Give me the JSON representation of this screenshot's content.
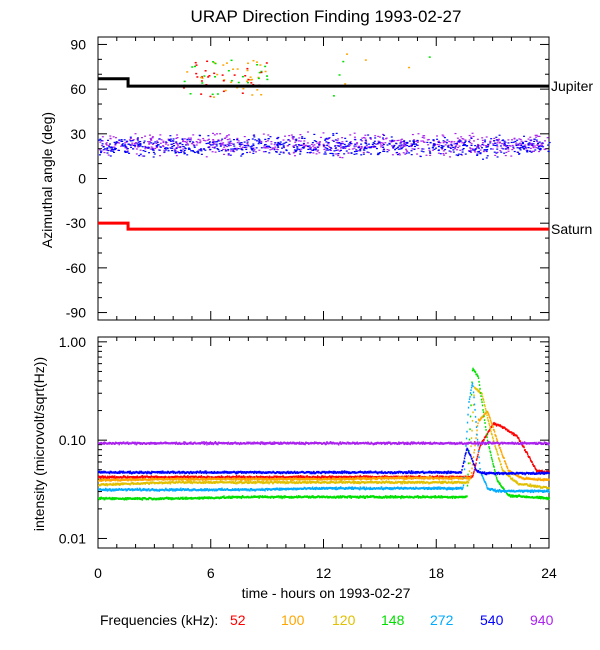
{
  "title": "URAP Direction Finding  1993-02-27",
  "freq_label": "Frequencies (kHz):",
  "colors": {
    "jupiter": "#000000",
    "saturn": "#ff0000",
    "f52": "#ff0000",
    "f100": "#ffa500",
    "f120": "#e0c000",
    "f148": "#00e000",
    "f272": "#00aaff",
    "f540": "#0000ff",
    "f940": "#aa22ee"
  },
  "chart_data": [
    {
      "type": "scatter",
      "ylabel": "Azimuthal angle (deg)",
      "xlim": [
        0,
        24
      ],
      "ylim": [
        -95,
        95
      ],
      "yticks": [
        "90",
        "60",
        "30",
        "0",
        "-30",
        "-60",
        "-90"
      ],
      "ytick_values": [
        90,
        60,
        30,
        0,
        -30,
        -60,
        -90
      ],
      "lines": [
        {
          "name": "Jupiter",
          "x": [
            0,
            1.6,
            1.6,
            24
          ],
          "y": [
            67,
            67,
            62,
            62
          ],
          "color_key": "jupiter"
        },
        {
          "name": "Saturn",
          "x": [
            0,
            1.6,
            1.6,
            24
          ],
          "y": [
            -30,
            -30,
            -34,
            -34
          ],
          "color_key": "saturn"
        }
      ],
      "scatter": {
        "band_940": {
          "x_range": [
            0,
            24
          ],
          "y_center": 23,
          "y_spread": 10,
          "color_key": "f940"
        },
        "band_540": {
          "x_range": [
            0,
            24
          ],
          "y_center": 22,
          "y_spread": 10,
          "color_key": "f540"
        },
        "upper_cluster": {
          "x_range": [
            4.5,
            9
          ],
          "y_range": [
            55,
            80
          ],
          "color_keys": [
            "f148",
            "f100",
            "f52"
          ]
        },
        "upper_points": [
          [
            13.2,
            84
          ],
          [
            13.0,
            79
          ],
          [
            14.2,
            80
          ],
          [
            17.6,
            82
          ],
          [
            16.5,
            75
          ],
          [
            12.8,
            70
          ],
          [
            13.1,
            64
          ],
          [
            12.5,
            56
          ]
        ]
      }
    },
    {
      "type": "scatter",
      "ylabel": "intensity (microvolt/sqrt(Hz))",
      "xlabel": "time - hours on 1993-02-27",
      "xlim": [
        0,
        24
      ],
      "ylim": [
        0.01,
        1.0
      ],
      "scale": "log",
      "xticks": [
        "0",
        "6",
        "12",
        "18",
        "24"
      ],
      "xtick_values": [
        0,
        6,
        12,
        18,
        24
      ],
      "yticks": [
        "1.00",
        "0.10",
        "0.01"
      ],
      "ytick_values": [
        1.0,
        0.1,
        0.01
      ],
      "series": [
        {
          "name": "52",
          "color_key": "f52",
          "x": [
            0,
            4,
            8,
            12,
            16,
            19.9,
            20.3,
            21.0,
            21.5,
            22.3,
            22.8,
            23.3,
            24
          ],
          "y": [
            0.043,
            0.043,
            0.043,
            0.043,
            0.043,
            0.043,
            0.09,
            0.15,
            0.14,
            0.11,
            0.075,
            0.05,
            0.048
          ]
        },
        {
          "name": "100",
          "color_key": "f100",
          "x": [
            0,
            4,
            8,
            12,
            16,
            19.8,
            20.2,
            20.7,
            21.3,
            21.8,
            22.5,
            24
          ],
          "y": [
            0.04,
            0.041,
            0.041,
            0.041,
            0.042,
            0.042,
            0.16,
            0.2,
            0.09,
            0.05,
            0.042,
            0.04
          ]
        },
        {
          "name": "120",
          "color_key": "f120",
          "x": [
            0,
            4,
            8,
            12,
            16,
            19.7,
            20.0,
            20.4,
            20.9,
            21.5,
            22.3,
            24
          ],
          "y": [
            0.036,
            0.038,
            0.038,
            0.038,
            0.038,
            0.038,
            0.35,
            0.3,
            0.12,
            0.05,
            0.037,
            0.033
          ]
        },
        {
          "name": "148",
          "color_key": "f148",
          "x": [
            0,
            4,
            8,
            12,
            16,
            19.6,
            19.9,
            20.2,
            20.7,
            21.2,
            21.8,
            24
          ],
          "y": [
            0.026,
            0.026,
            0.027,
            0.027,
            0.027,
            0.027,
            0.55,
            0.45,
            0.1,
            0.04,
            0.028,
            0.026
          ]
        },
        {
          "name": "272",
          "color_key": "f272",
          "x": [
            0,
            4,
            8,
            12,
            16,
            19.4,
            19.7,
            19.9,
            20.3,
            20.7,
            21.2,
            24
          ],
          "y": [
            0.032,
            0.032,
            0.032,
            0.033,
            0.033,
            0.033,
            0.25,
            0.4,
            0.05,
            0.033,
            0.031,
            0.031
          ]
        },
        {
          "name": "540",
          "color_key": "f540",
          "x": [
            0,
            4,
            8,
            12,
            16,
            19.3,
            19.6,
            19.8,
            20.1,
            20.5,
            24
          ],
          "y": [
            0.048,
            0.048,
            0.048,
            0.048,
            0.048,
            0.048,
            0.085,
            0.07,
            0.05,
            0.047,
            0.047
          ]
        },
        {
          "name": "940",
          "color_key": "f940",
          "x": [
            0,
            6,
            12,
            18,
            24
          ],
          "y": [
            0.095,
            0.095,
            0.095,
            0.095,
            0.095
          ]
        }
      ]
    }
  ],
  "legend": [
    {
      "name": "52",
      "color_key": "f52"
    },
    {
      "name": "100",
      "color_key": "f100"
    },
    {
      "name": "120",
      "color_key": "f120"
    },
    {
      "name": "148",
      "color_key": "f148"
    },
    {
      "name": "272",
      "color_key": "f272"
    },
    {
      "name": "540",
      "color_key": "f540"
    },
    {
      "name": "940",
      "color_key": "f940"
    }
  ]
}
